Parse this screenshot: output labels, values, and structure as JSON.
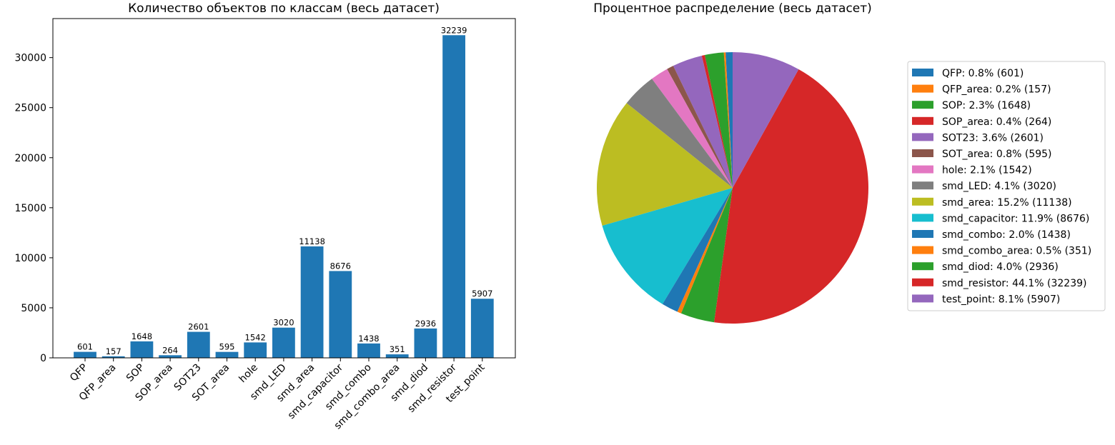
{
  "chart_data": [
    {
      "type": "bar",
      "title": "Количество объектов по классам (весь датасет)",
      "xlabel": "",
      "ylabel": "",
      "categories": [
        "QFP",
        "QFP_area",
        "SOP",
        "SOP_area",
        "SOT23",
        "SOT_area",
        "hole",
        "smd_LED",
        "smd_area",
        "smd_capacitor",
        "smd_combo",
        "smd_combo_area",
        "smd_diod",
        "smd_resistor",
        "test_point"
      ],
      "values": [
        601,
        157,
        1648,
        264,
        2601,
        595,
        1542,
        3020,
        11138,
        8676,
        1438,
        351,
        2936,
        32239,
        5907
      ],
      "ylim": [
        0,
        33900
      ],
      "yticks": [
        0,
        5000,
        10000,
        15000,
        20000,
        25000,
        30000
      ],
      "grid": false,
      "color": "#1f77b4"
    },
    {
      "type": "pie",
      "title": "Процентное распределение (весь датасет)",
      "start_angle_deg": 90,
      "direction": "counterclockwise",
      "legend_position": "right",
      "slices": [
        {
          "label": "QFP: 0.8% (601)",
          "value": 601,
          "color": "#1f77b4"
        },
        {
          "label": "QFP_area: 0.2% (157)",
          "value": 157,
          "color": "#ff7f0e"
        },
        {
          "label": "SOP: 2.3% (1648)",
          "value": 1648,
          "color": "#2ca02c"
        },
        {
          "label": "SOP_area: 0.4% (264)",
          "value": 264,
          "color": "#d62728"
        },
        {
          "label": "SOT23: 3.6% (2601)",
          "value": 2601,
          "color": "#9467bd"
        },
        {
          "label": "SOT_area: 0.8% (595)",
          "value": 595,
          "color": "#8c564b"
        },
        {
          "label": "hole: 2.1% (1542)",
          "value": 1542,
          "color": "#e377c2"
        },
        {
          "label": "smd_LED: 4.1% (3020)",
          "value": 3020,
          "color": "#7f7f7f"
        },
        {
          "label": "smd_area: 15.2% (11138)",
          "value": 11138,
          "color": "#bcbd22"
        },
        {
          "label": "smd_capacitor: 11.9% (8676)",
          "value": 8676,
          "color": "#17becf"
        },
        {
          "label": "smd_combo: 2.0% (1438)",
          "value": 1438,
          "color": "#1f77b4"
        },
        {
          "label": "smd_combo_area: 0.5% (351)",
          "value": 351,
          "color": "#ff7f0e"
        },
        {
          "label": "smd_diod: 4.0% (2936)",
          "value": 2936,
          "color": "#2ca02c"
        },
        {
          "label": "smd_resistor: 44.1% (32239)",
          "value": 32239,
          "color": "#d62728"
        },
        {
          "label": "test_point: 8.1% (5907)",
          "value": 5907,
          "color": "#9467bd"
        }
      ]
    }
  ]
}
